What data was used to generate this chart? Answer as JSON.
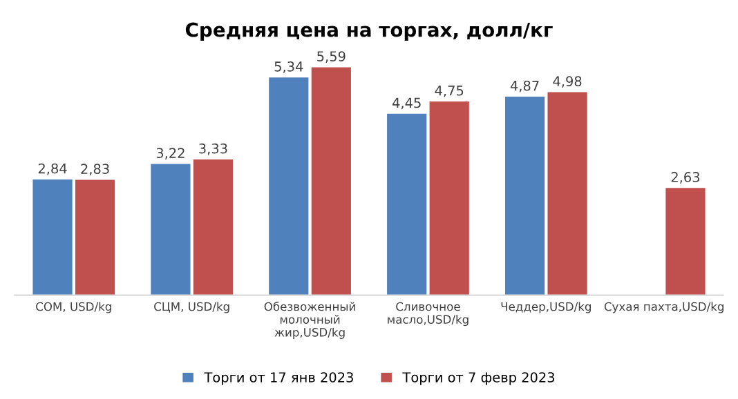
{
  "chart_data": {
    "type": "bar",
    "title": "Средняя цена на торгах, долл/кг",
    "categories": [
      "СОМ, USD/kg",
      "СЦМ, USD/kg",
      "Обезвоженный\nмолочный\nжир,USD/kg",
      "Сливочное\nмасло,USD/kg",
      "Чеддер,USD/kg",
      "Сухая пахта,USD/kg"
    ],
    "series": [
      {
        "name": "Торги от 17 янв 2023",
        "color": "#4f81bd",
        "values": [
          2.84,
          3.22,
          5.34,
          4.45,
          4.87,
          null
        ],
        "value_labels": [
          "2,84",
          "3,22",
          "5,34",
          "4,45",
          "4,87",
          null
        ]
      },
      {
        "name": "Торги от 7 февр 2023",
        "color": "#c0504d",
        "values": [
          2.83,
          3.33,
          5.59,
          4.75,
          4.98,
          2.63
        ],
        "value_labels": [
          "2,83",
          "3,33",
          "5,59",
          "4,75",
          "4,98",
          "2,63"
        ]
      }
    ],
    "legend": "bottom",
    "grid": false
  }
}
